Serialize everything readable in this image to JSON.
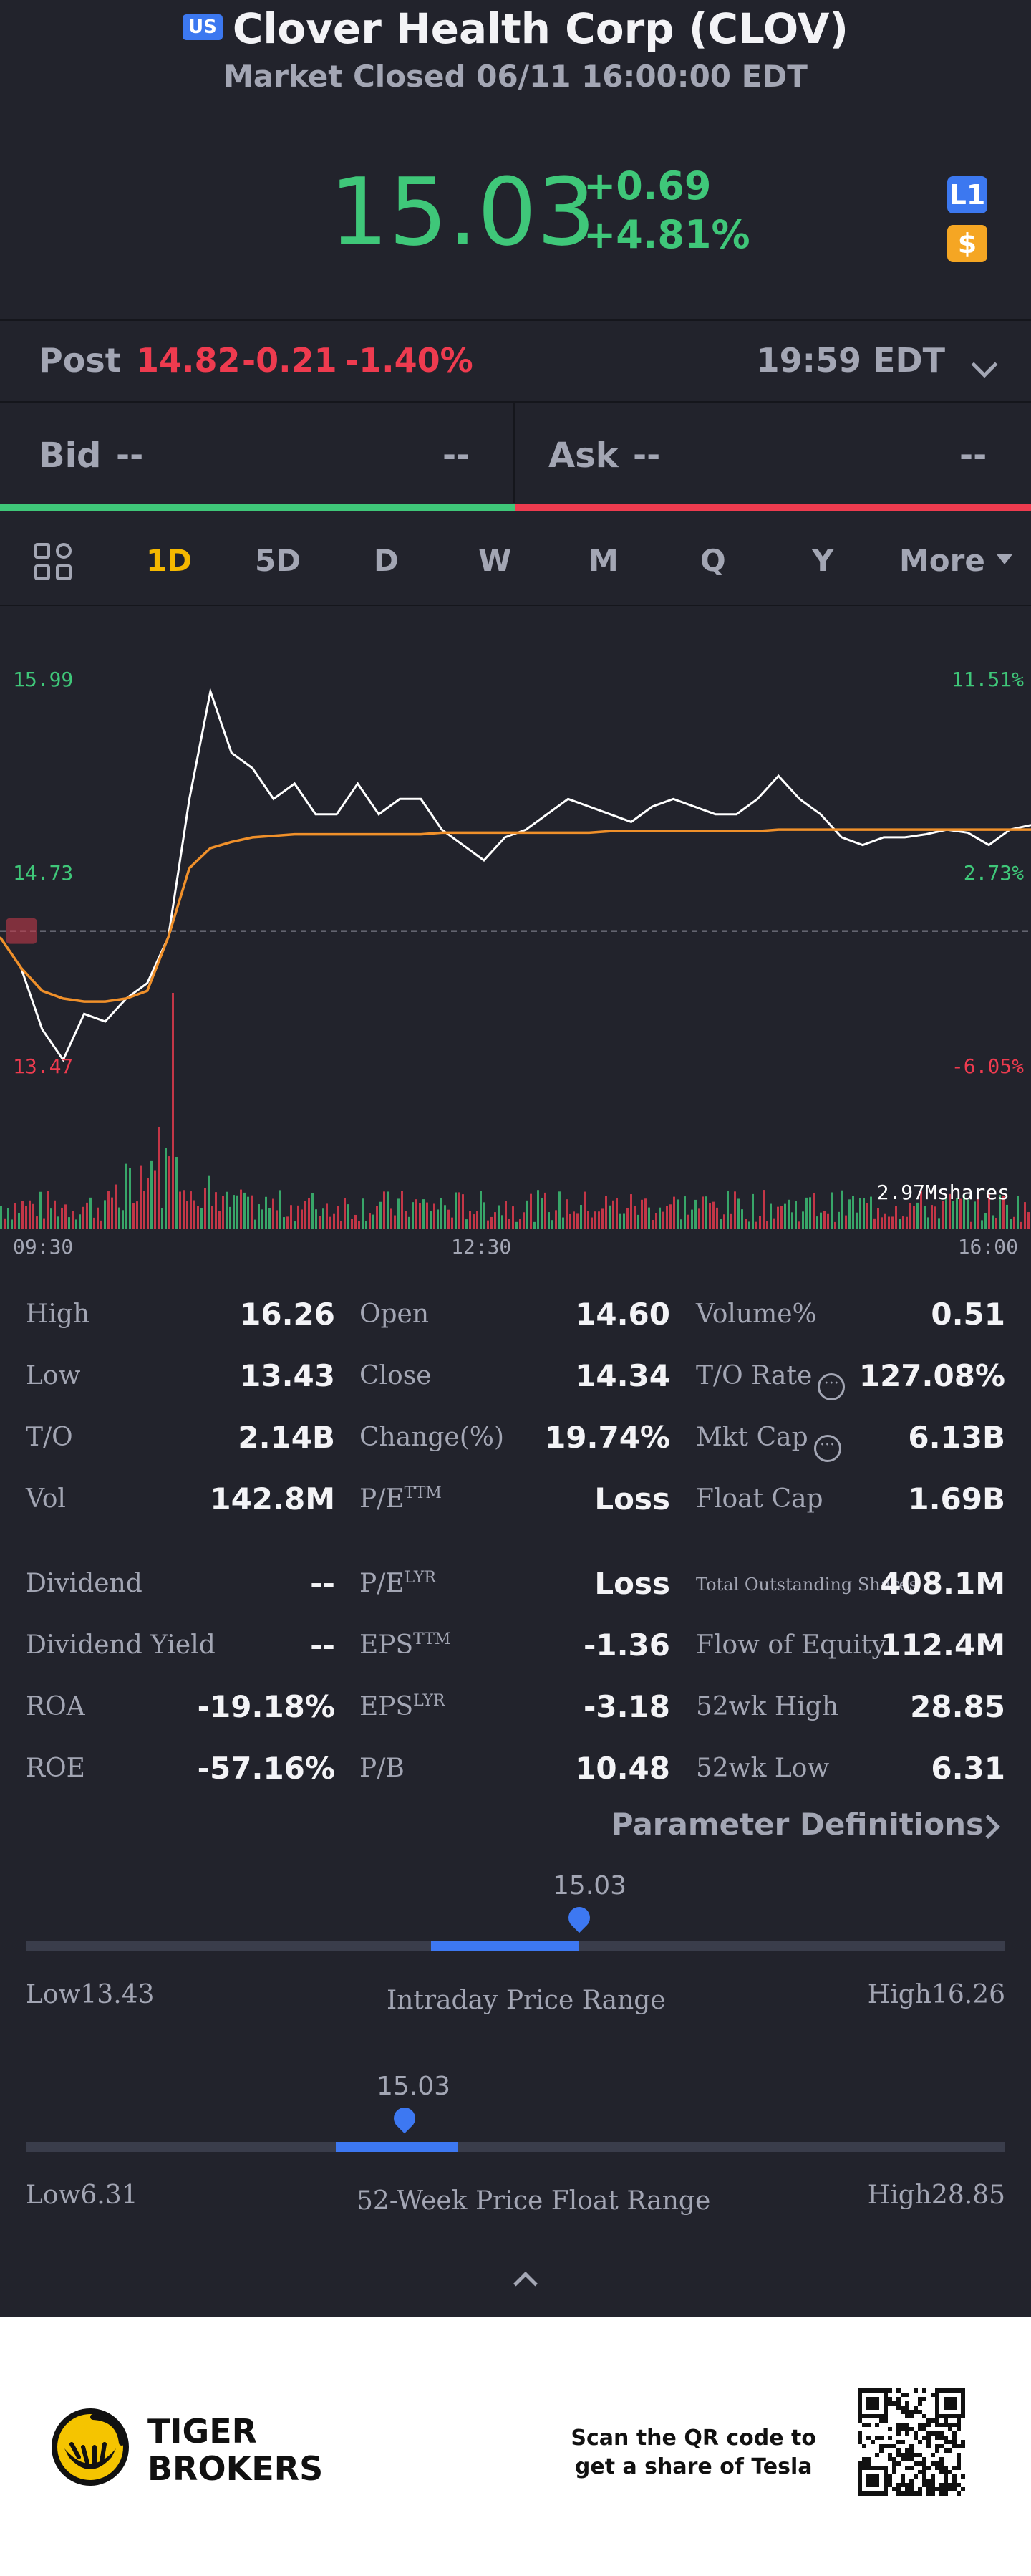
{
  "header": {
    "market_badge": "US",
    "title": "Clover Health Corp (CLOV)",
    "status": "Market Closed 06/11 16:00:00 EDT",
    "price": "15.03",
    "change": "+0.69",
    "change_pct": "+4.81%",
    "level_badge": "L1",
    "currency_badge": "$"
  },
  "post": {
    "label": "Post",
    "price": "14.82",
    "change": "-0.21",
    "change_pct": "-1.40%",
    "time": "19:59 EDT"
  },
  "bid_ask": {
    "bid_label": "Bid",
    "bid_price": "--",
    "bid_size": "--",
    "ask_label": "Ask",
    "ask_price": "--",
    "ask_size": "--"
  },
  "tabs": [
    "1D",
    "5D",
    "D",
    "W",
    "M",
    "Q",
    "Y",
    "More"
  ],
  "active_tab": "1D",
  "chart_data": {
    "type": "line",
    "left_axis": [
      "15.99",
      "14.73",
      "13.47"
    ],
    "right_axis": [
      "11.51%",
      "2.73%",
      "-6.05%"
    ],
    "x_labels": [
      "09:30",
      "12:30",
      "16:00"
    ],
    "volume_label": "2.97Mshares",
    "prev_close": 14.34,
    "ylim": [
      13.47,
      15.99
    ],
    "series": [
      {
        "name": "price",
        "color": "#ffffff",
        "values": [
          14.3,
          14.1,
          13.7,
          13.5,
          13.8,
          13.75,
          13.9,
          14.0,
          14.3,
          15.2,
          15.9,
          15.5,
          15.4,
          15.2,
          15.3,
          15.1,
          15.1,
          15.3,
          15.1,
          15.2,
          15.2,
          15.0,
          14.9,
          14.8,
          14.95,
          15.0,
          15.1,
          15.2,
          15.15,
          15.1,
          15.05,
          15.15,
          15.2,
          15.15,
          15.1,
          15.1,
          15.2,
          15.35,
          15.2,
          15.1,
          14.95,
          14.9,
          14.95,
          14.95,
          14.97,
          15.0,
          14.98,
          14.9,
          15.0,
          15.03
        ]
      },
      {
        "name": "avg",
        "color": "#f0902a",
        "values": [
          14.3,
          14.1,
          13.95,
          13.9,
          13.88,
          13.88,
          13.9,
          13.95,
          14.3,
          14.75,
          14.88,
          14.92,
          14.95,
          14.96,
          14.97,
          14.97,
          14.97,
          14.97,
          14.97,
          14.97,
          14.97,
          14.98,
          14.98,
          14.98,
          14.98,
          14.98,
          14.98,
          14.98,
          14.98,
          14.99,
          14.99,
          14.99,
          14.99,
          14.99,
          14.99,
          14.99,
          14.99,
          15.0,
          15.0,
          15.0,
          15.0,
          15.0,
          15.0,
          15.0,
          15.0,
          15.0,
          15.0,
          15.0,
          15.0,
          15.0
        ]
      }
    ]
  },
  "stats": [
    [
      {
        "label": "High",
        "value": "16.26"
      },
      {
        "label": "Open",
        "value": "14.60"
      },
      {
        "label": "Volume%",
        "value": "0.51"
      }
    ],
    [
      {
        "label": "Low",
        "value": "13.43"
      },
      {
        "label": "Close",
        "value": "14.34"
      },
      {
        "label": "T/O Rate",
        "value": "127.08%",
        "info": true
      }
    ],
    [
      {
        "label": "T/O",
        "value": "2.14B"
      },
      {
        "label": "Change(%)",
        "value": "19.74%"
      },
      {
        "label": "Mkt Cap",
        "value": "6.13B",
        "info": true
      }
    ],
    [
      {
        "label": "Vol",
        "value": "142.8M"
      },
      {
        "label": "P/E",
        "sup": "TTM",
        "value": "Loss"
      },
      {
        "label": "Float Cap",
        "value": "1.69B"
      }
    ],
    [
      {
        "label": "Dividend",
        "value": "--"
      },
      {
        "label": "P/E",
        "sup": "LYR",
        "value": "Loss"
      },
      {
        "label": "Total Outstanding Shares",
        "value": "408.1M",
        "small": true
      }
    ],
    [
      {
        "label": "Dividend Yield",
        "value": "--"
      },
      {
        "label": "EPS",
        "sup": "TTM",
        "value": "-1.36"
      },
      {
        "label": "Flow of Equity",
        "value": "112.4M"
      }
    ],
    [
      {
        "label": "ROA",
        "value": "-19.18%"
      },
      {
        "label": "EPS",
        "sup": "LYR",
        "value": "-3.18"
      },
      {
        "label": "52wk High",
        "value": "28.85"
      }
    ],
    [
      {
        "label": "ROE",
        "value": "-57.16%"
      },
      {
        "label": "P/B",
        "value": "10.48"
      },
      {
        "label": "52wk Low",
        "value": "6.31"
      }
    ]
  ],
  "param_link": "Parameter Definitions",
  "intraday_range": {
    "current": "15.03",
    "low": "Low13.43",
    "high": "High16.26",
    "label": "Intraday Price Range",
    "low_num": 13.43,
    "high_num": 16.26,
    "open_num": 14.6,
    "cur_num": 15.03
  },
  "week52_range": {
    "current": "15.03",
    "low": "Low6.31",
    "high": "High28.85",
    "label": "52-Week Price Float Range",
    "low_num": 6.31,
    "high_num": 28.85,
    "open_num": 14.6,
    "cur_num": 15.03
  },
  "footer": {
    "brand_line1": "TIGER",
    "brand_line2": "BROKERS",
    "qr_line1": "Scan the QR code to",
    "qr_line2": "get a share of Tesla"
  },
  "colors": {
    "up": "#3fc779",
    "down": "#ee3b4f",
    "accent": "#3d78f2",
    "active_tab": "#f5b800",
    "avg_line": "#f0902a"
  }
}
